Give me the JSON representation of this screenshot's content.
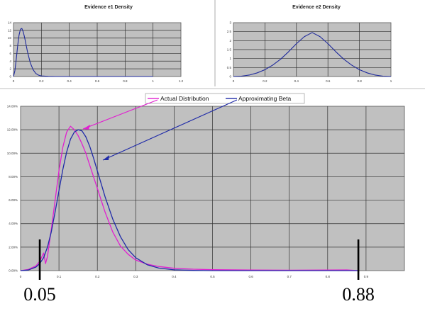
{
  "chart_data": [
    {
      "type": "line",
      "title": "Evidence e1 Density",
      "xlim": [
        0,
        1.2
      ],
      "ylim": [
        0,
        14
      ],
      "x_ticks": [
        "0",
        "0.2",
        "0.4",
        "0.6",
        "0.8",
        "1",
        "1.2"
      ],
      "y_ticks": [
        "0",
        "2",
        "4",
        "6",
        "8",
        "10",
        "12",
        "14"
      ],
      "grid": true,
      "series": [
        {
          "color": "#1f2a9c",
          "x": [
            0,
            0.01,
            0.02,
            0.03,
            0.04,
            0.05,
            0.06,
            0.07,
            0.08,
            0.09,
            0.1,
            0.12,
            0.14,
            0.16,
            0.18,
            0.2,
            0.25,
            0.3,
            0.4,
            0.6,
            0.8,
            1.0
          ],
          "y": [
            0,
            1.5,
            4.5,
            8.0,
            10.8,
            12.3,
            12.5,
            11.6,
            10.1,
            8.3,
            6.5,
            3.6,
            1.8,
            0.8,
            0.35,
            0.15,
            0.03,
            0,
            0,
            0,
            0,
            0
          ]
        }
      ]
    },
    {
      "type": "line",
      "title": "Evidence e2 Density",
      "xlim": [
        0,
        1
      ],
      "ylim": [
        0,
        3
      ],
      "x_ticks": [
        "0",
        "0.2",
        "0.4",
        "0.6",
        "0.8",
        "1"
      ],
      "y_ticks": [
        "0",
        "0.5",
        "1",
        "1.5",
        "2",
        "2.5",
        "3"
      ],
      "grid": true,
      "series": [
        {
          "color": "#1f2a9c",
          "x": [
            0,
            0.05,
            0.1,
            0.15,
            0.2,
            0.25,
            0.3,
            0.35,
            0.4,
            0.45,
            0.5,
            0.55,
            0.6,
            0.65,
            0.7,
            0.75,
            0.8,
            0.85,
            0.9,
            0.95,
            1.0
          ],
          "y": [
            0,
            0.02,
            0.08,
            0.2,
            0.38,
            0.64,
            0.97,
            1.38,
            1.83,
            2.22,
            2.45,
            2.22,
            1.83,
            1.38,
            0.97,
            0.64,
            0.38,
            0.2,
            0.08,
            0.02,
            0
          ]
        }
      ]
    },
    {
      "type": "line",
      "title": "",
      "xlim": [
        0,
        1
      ],
      "ylim": [
        0,
        14
      ],
      "x_ticks": [
        "0",
        "0.1",
        "0.2",
        "0.3",
        "0.4",
        "0.5",
        "0.6",
        "0.7",
        "0.8",
        "0.9"
      ],
      "y_ticks": [
        "0.00%",
        "2.00%",
        "4.00%",
        "6.00%",
        "8.00%",
        "10.00%",
        "12.00%",
        "14.00%"
      ],
      "grid": true,
      "legend": "top-center",
      "series": [
        {
          "name": "Actual Distribution",
          "color": "#e020d0",
          "x": [
            0,
            0.02,
            0.04,
            0.05,
            0.06,
            0.065,
            0.07,
            0.08,
            0.09,
            0.1,
            0.11,
            0.12,
            0.13,
            0.14,
            0.15,
            0.16,
            0.17,
            0.18,
            0.2,
            0.22,
            0.24,
            0.26,
            0.28,
            0.3,
            0.33,
            0.36,
            0.4,
            0.45,
            0.5,
            0.6,
            0.7,
            0.8,
            0.85,
            0.88
          ],
          "y": [
            0,
            0.1,
            0.4,
            0.8,
            1.5,
            0.6,
            1.2,
            3.5,
            6.0,
            8.5,
            10.5,
            11.8,
            12.3,
            12.0,
            11.5,
            10.8,
            10.0,
            9.0,
            7.0,
            5.0,
            3.3,
            2.1,
            1.4,
            0.9,
            0.55,
            0.35,
            0.2,
            0.12,
            0.08,
            0.05,
            0.04,
            0.05,
            0.06,
            0.0
          ]
        },
        {
          "name": "Approximating Beta",
          "color": "#1f2aa8",
          "x": [
            0,
            0.02,
            0.04,
            0.05,
            0.06,
            0.07,
            0.08,
            0.09,
            0.1,
            0.11,
            0.12,
            0.13,
            0.14,
            0.15,
            0.16,
            0.17,
            0.18,
            0.19,
            0.2,
            0.22,
            0.24,
            0.26,
            0.28,
            0.3,
            0.33,
            0.36,
            0.4,
            0.45,
            0.5,
            0.6,
            0.7,
            0.8,
            0.88
          ],
          "y": [
            0,
            0.05,
            0.3,
            0.6,
            1.1,
            2.0,
            3.3,
            5.0,
            6.8,
            8.6,
            10.1,
            11.2,
            11.8,
            12.0,
            11.9,
            11.4,
            10.6,
            9.6,
            8.5,
            6.3,
            4.4,
            2.9,
            1.8,
            1.1,
            0.5,
            0.22,
            0.07,
            0.02,
            0,
            0,
            0,
            0,
            0
          ]
        }
      ],
      "markers": [
        {
          "x": 0.05,
          "label": "0.05"
        },
        {
          "x": 0.88,
          "label": "0.88"
        }
      ]
    }
  ]
}
